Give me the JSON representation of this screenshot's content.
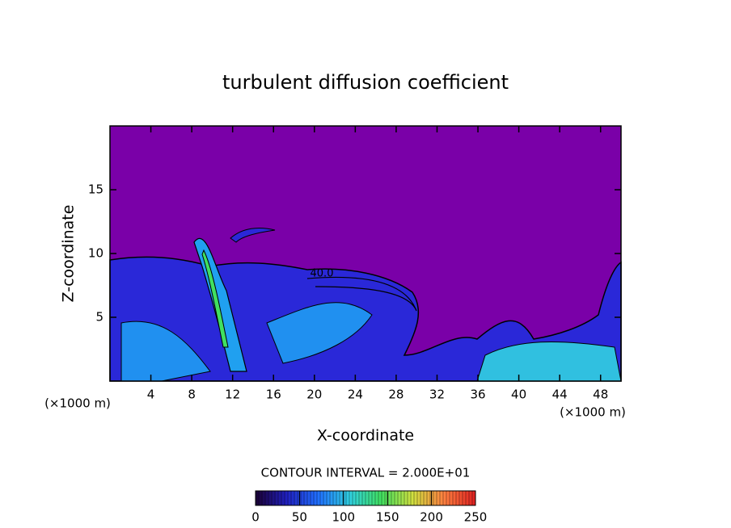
{
  "chart_data": {
    "type": "contour",
    "title": "turbulent diffusion coefficient",
    "x_label": "X-coordinate",
    "y_label": "Z-coordinate",
    "x_unit": "(×1000 m)",
    "y_unit": "(×1000 m)",
    "xlim": [
      0,
      50
    ],
    "xticks": [
      4,
      8,
      12,
      16,
      20,
      24,
      28,
      32,
      36,
      40,
      44,
      48
    ],
    "ylim": [
      0,
      20
    ],
    "yticks": [
      5,
      10,
      15
    ],
    "contour_label": "40.0",
    "contour_interval_label": "CONTOUR INTERVAL = 2.000E+01",
    "colorbar": {
      "lim": [
        0,
        250
      ],
      "ticks": [
        0,
        50,
        100,
        150,
        200,
        250
      ],
      "colors": [
        "#1a0033",
        "#2020c0",
        "#2070ff",
        "#30d0e0",
        "#40e060",
        "#d0e040",
        "#ff8040",
        "#e02020"
      ]
    }
  }
}
